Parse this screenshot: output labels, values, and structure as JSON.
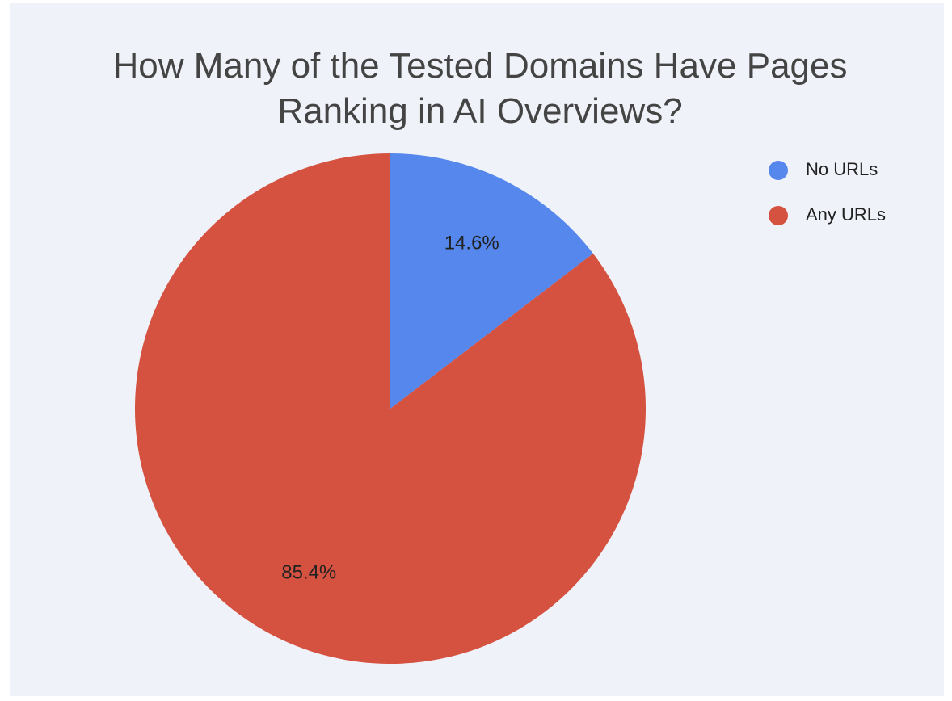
{
  "chart_data": {
    "type": "pie",
    "title": "How Many of the Tested Domains Have Pages Ranking in AI Overviews?",
    "categories": [
      "No URLs",
      "Any URLs"
    ],
    "values": [
      14.6,
      85.4
    ],
    "value_labels": [
      "14.6%",
      "85.4%"
    ],
    "colors": [
      "#5587ec",
      "#d55140"
    ],
    "legend": "right"
  }
}
